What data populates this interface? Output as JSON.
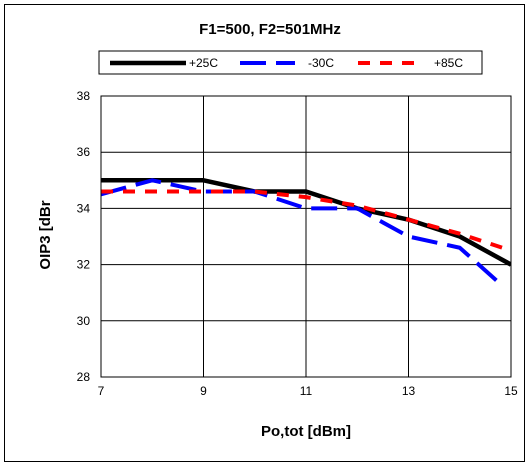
{
  "chart_data": {
    "type": "line",
    "title": "F1=500, F2=501MHz",
    "xlabel": "Po,tot [dBm]",
    "ylabel": "OIP3 [dBr",
    "xlim": [
      7,
      15
    ],
    "ylim": [
      28,
      38
    ],
    "xticks": [
      7,
      9,
      11,
      13,
      15
    ],
    "yticks": [
      28,
      30,
      32,
      34,
      36,
      38
    ],
    "grid": true,
    "legend_position": "top",
    "series": [
      {
        "name": "+25C",
        "color": "#000000",
        "style": "solid",
        "points": [
          [
            7,
            35.0
          ],
          [
            9,
            35.0
          ],
          [
            10,
            34.6
          ],
          [
            11,
            34.6
          ],
          [
            12,
            34.0
          ],
          [
            13,
            33.6
          ],
          [
            14,
            33.0
          ],
          [
            15,
            32.0
          ]
        ]
      },
      {
        "name": "-30C",
        "color": "#0000ff",
        "style": "dashed",
        "points": [
          [
            7,
            34.5
          ],
          [
            8,
            35.0
          ],
          [
            9,
            34.6
          ],
          [
            10,
            34.6
          ],
          [
            11,
            34.0
          ],
          [
            12,
            34.0
          ],
          [
            13,
            33.0
          ],
          [
            14,
            32.6
          ],
          [
            14.8,
            31.3
          ]
        ]
      },
      {
        "name": "+85C",
        "color": "#ff0000",
        "style": "dashed",
        "points": [
          [
            7,
            34.6
          ],
          [
            8,
            34.6
          ],
          [
            9,
            34.6
          ],
          [
            10,
            34.6
          ],
          [
            11,
            34.4
          ],
          [
            12,
            34.1
          ],
          [
            13,
            33.6
          ],
          [
            14,
            33.1
          ],
          [
            15,
            32.5
          ]
        ]
      }
    ]
  }
}
